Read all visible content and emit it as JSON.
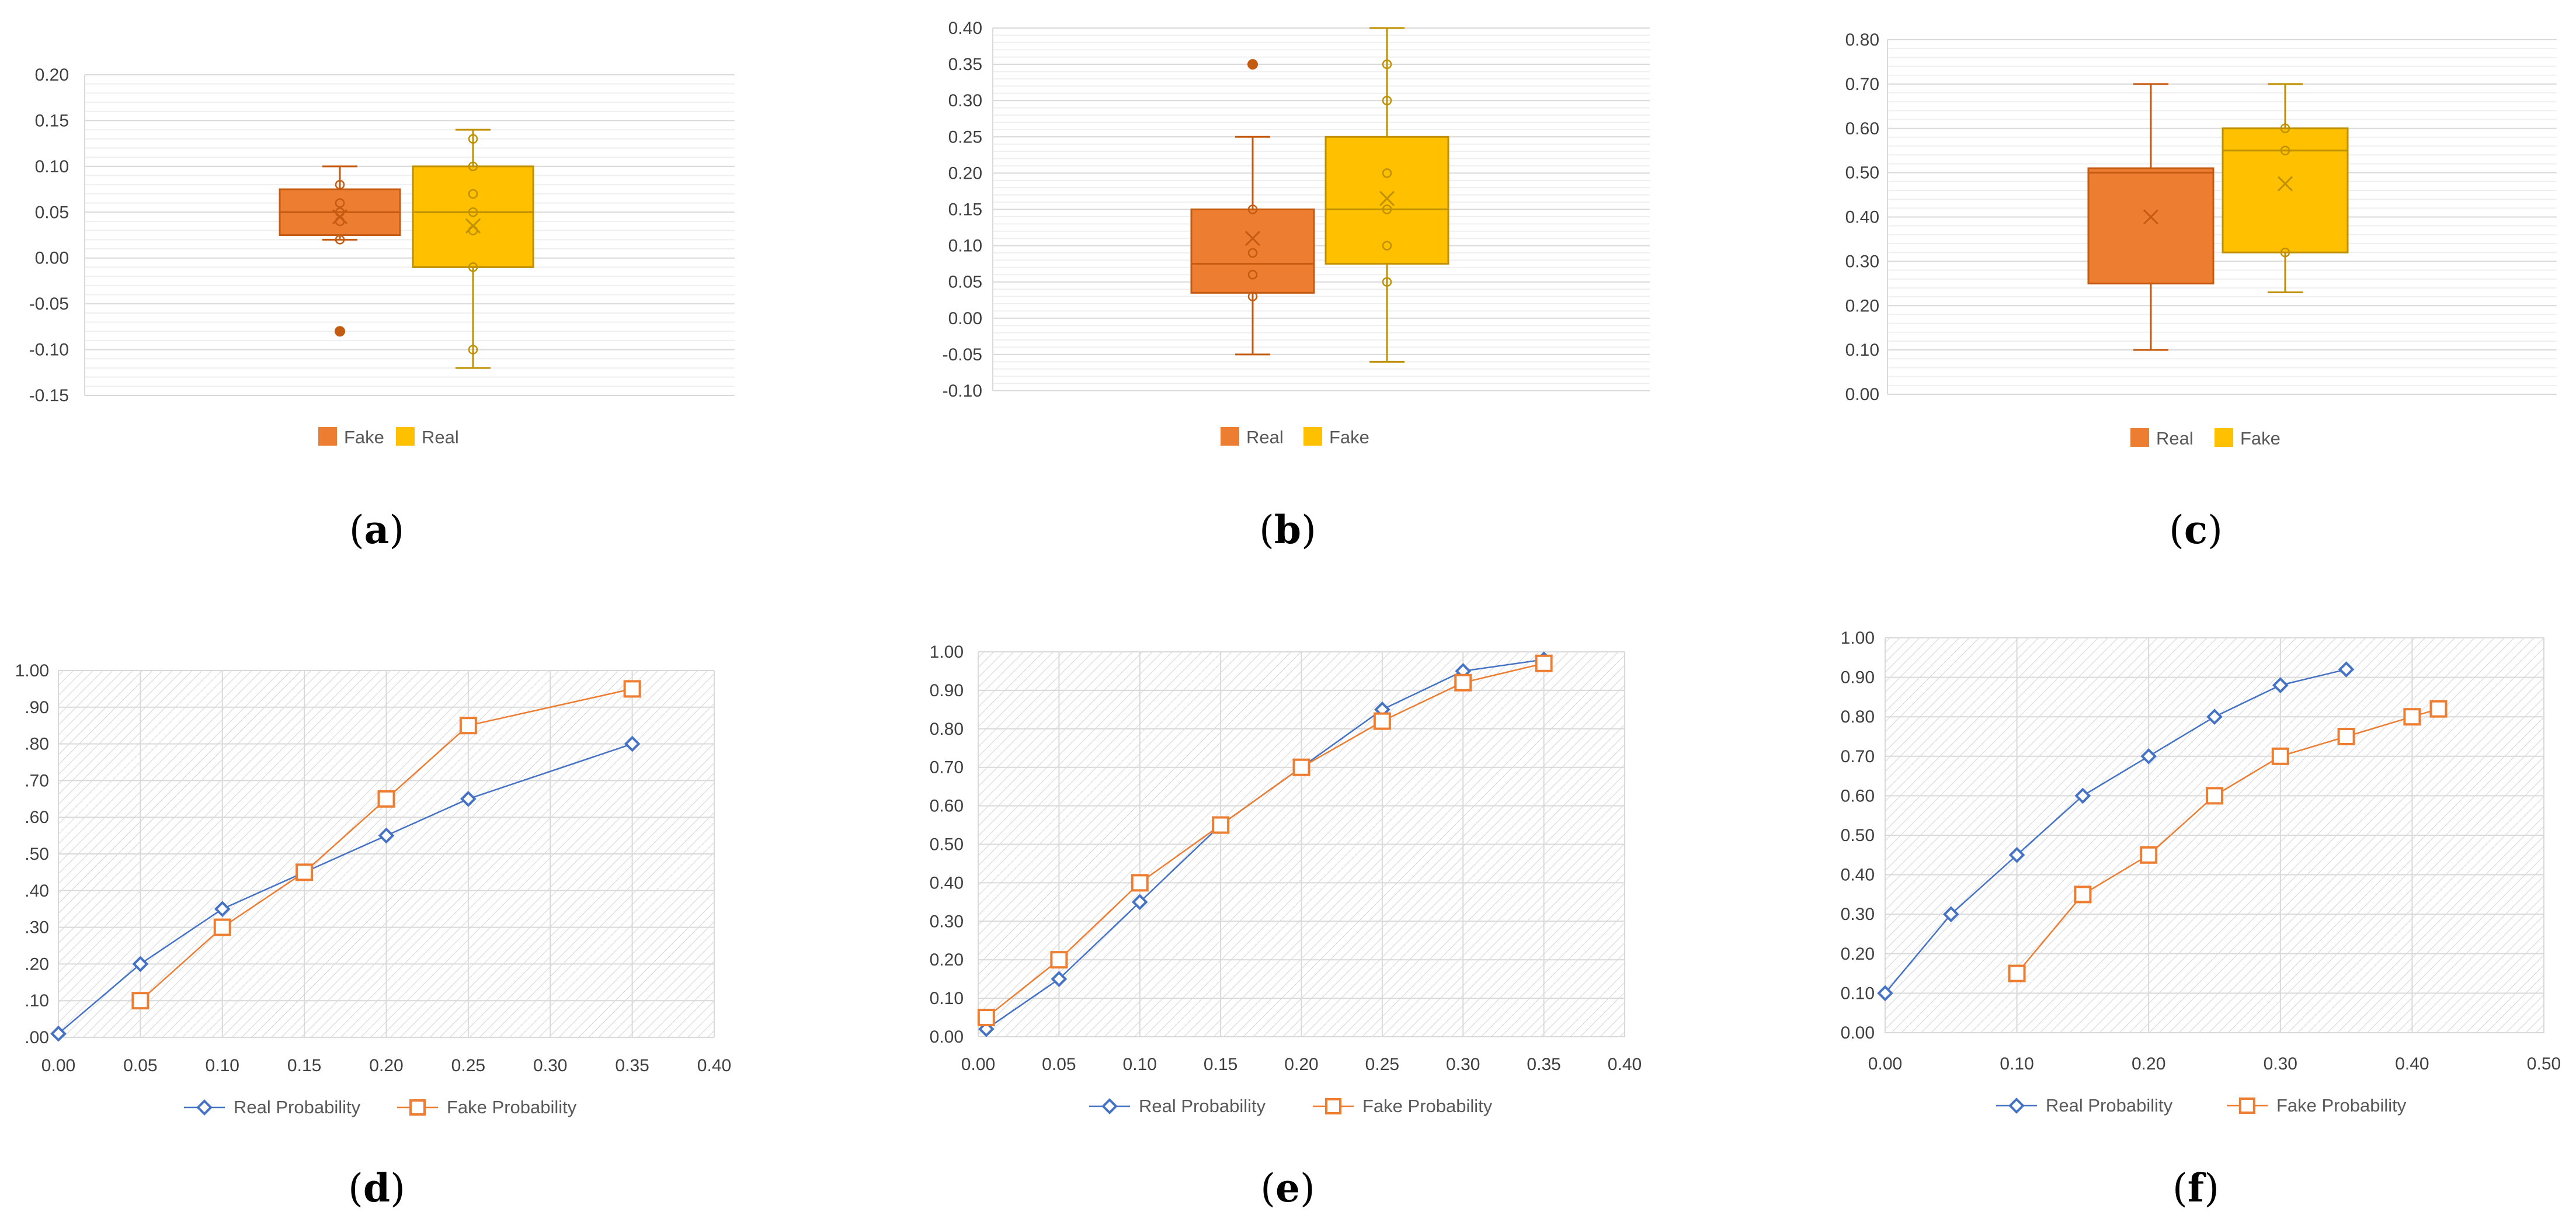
{
  "chart_data": [
    {
      "id": "a",
      "type": "box",
      "caption": "a",
      "ylim": [
        -0.15,
        0.2
      ],
      "yticks": [
        "0.20",
        "0.15",
        "0.10",
        "0.05",
        "0.00",
        "-0.05",
        "-0.10",
        "-0.15"
      ],
      "ytick_values": [
        0.2,
        0.15,
        0.1,
        0.05,
        0.0,
        -0.05,
        -0.1,
        -0.15
      ],
      "legend": [
        "Fake",
        "Real"
      ],
      "series": [
        {
          "name": "Fake",
          "color": "#ED7D31",
          "min": 0.02,
          "q1": 0.025,
          "median": 0.05,
          "q3": 0.075,
          "max": 0.1,
          "mean": 0.045,
          "points": [
            0.08,
            0.06,
            0.05,
            0.04,
            0.02
          ],
          "outliers": [
            -0.08
          ]
        },
        {
          "name": "Real",
          "color": "#FFC000",
          "min": -0.12,
          "q1": -0.01,
          "median": 0.05,
          "q3": 0.1,
          "max": 0.14,
          "mean": 0.035,
          "points": [
            0.13,
            0.1,
            0.07,
            0.05,
            0.03,
            -0.01,
            -0.1
          ],
          "outliers": []
        }
      ]
    },
    {
      "id": "b",
      "type": "box",
      "caption": "b",
      "ylim": [
        -0.1,
        0.4
      ],
      "yticks": [
        "0.40",
        "0.35",
        "0.30",
        "0.25",
        "0.20",
        "0.15",
        "0.10",
        "0.05",
        "0.00",
        "-0.05",
        "-0.10"
      ],
      "ytick_values": [
        0.4,
        0.35,
        0.3,
        0.25,
        0.2,
        0.15,
        0.1,
        0.05,
        0.0,
        -0.05,
        -0.1
      ],
      "legend": [
        "Real",
        "Fake"
      ],
      "series": [
        {
          "name": "Real",
          "color": "#ED7D31",
          "min": -0.05,
          "q1": 0.035,
          "median": 0.075,
          "q3": 0.15,
          "max": 0.25,
          "mean": 0.11,
          "points": [
            0.15,
            0.09,
            0.06,
            0.03
          ],
          "outliers": [
            0.35
          ]
        },
        {
          "name": "Fake",
          "color": "#FFC000",
          "min": -0.06,
          "q1": 0.075,
          "median": 0.15,
          "q3": 0.25,
          "max": 0.4,
          "mean": 0.165,
          "points": [
            0.35,
            0.3,
            0.2,
            0.15,
            0.1,
            0.05
          ],
          "outliers": []
        }
      ]
    },
    {
      "id": "c",
      "type": "box",
      "caption": "c",
      "ylim": [
        0.0,
        0.8
      ],
      "yticks": [
        "0.80",
        "0.70",
        "0.60",
        "0.50",
        "0.40",
        "0.30",
        "0.20",
        "0.10",
        "0.00"
      ],
      "ytick_values": [
        0.8,
        0.7,
        0.6,
        0.5,
        0.4,
        0.3,
        0.2,
        0.1,
        0.0
      ],
      "legend": [
        "Real",
        "Fake"
      ],
      "series": [
        {
          "name": "Real",
          "color": "#ED7D31",
          "min": 0.1,
          "q1": 0.25,
          "median": 0.5,
          "q3": 0.51,
          "max": 0.7,
          "mean": 0.4,
          "points": [],
          "outliers": []
        },
        {
          "name": "Fake",
          "color": "#FFC000",
          "min": 0.23,
          "q1": 0.32,
          "median": 0.55,
          "q3": 0.6,
          "max": 0.7,
          "mean": 0.475,
          "points": [
            0.6,
            0.55,
            0.32
          ],
          "outliers": []
        }
      ]
    },
    {
      "id": "d",
      "type": "line",
      "caption": "d",
      "xlim": [
        0.0,
        0.4
      ],
      "ylim": [
        0.0,
        1.0
      ],
      "xticks": [
        "0.00",
        "0.05",
        "0.10",
        "0.15",
        "0.20",
        "0.25",
        "0.30",
        "0.35",
        "0.40"
      ],
      "yticks": [
        "1.00",
        ".90",
        ".80",
        ".70",
        ".60",
        ".50",
        ".40",
        ".30",
        ".20",
        ".10",
        ".00"
      ],
      "legend": [
        "Real Probability",
        "Fake Probability"
      ],
      "series": [
        {
          "name": "Real Probability",
          "color": "#4472C4",
          "marker": "diamond",
          "x": [
            0.0,
            0.05,
            0.1,
            0.15,
            0.2,
            0.25,
            0.35
          ],
          "y": [
            0.01,
            0.2,
            0.35,
            0.45,
            0.55,
            0.65,
            0.8
          ]
        },
        {
          "name": "Fake Probability",
          "color": "#ED7D31",
          "marker": "square",
          "x": [
            0.05,
            0.1,
            0.15,
            0.2,
            0.25,
            0.35
          ],
          "y": [
            0.1,
            0.3,
            0.45,
            0.65,
            0.85,
            0.95
          ]
        }
      ]
    },
    {
      "id": "e",
      "type": "line",
      "caption": "e",
      "xlim": [
        0.0,
        0.4
      ],
      "ylim": [
        0.0,
        1.0
      ],
      "xticks": [
        "0.00",
        "0.05",
        "0.10",
        "0.15",
        "0.20",
        "0.25",
        "0.30",
        "0.35",
        "0.40"
      ],
      "yticks": [
        "1.00",
        "0.90",
        "0.80",
        "0.70",
        "0.60",
        "0.50",
        "0.40",
        "0.30",
        "0.20",
        "0.10",
        "0.00"
      ],
      "legend": [
        "Real Probability",
        "Fake Probability"
      ],
      "series": [
        {
          "name": "Real Probability",
          "color": "#4472C4",
          "marker": "diamond",
          "x": [
            0.005,
            0.05,
            0.1,
            0.15,
            0.2,
            0.25,
            0.3,
            0.35
          ],
          "y": [
            0.02,
            0.15,
            0.35,
            0.55,
            0.7,
            0.85,
            0.95,
            0.98
          ]
        },
        {
          "name": "Fake Probability",
          "color": "#ED7D31",
          "marker": "square",
          "x": [
            0.005,
            0.05,
            0.1,
            0.15,
            0.2,
            0.25,
            0.3,
            0.35
          ],
          "y": [
            0.05,
            0.2,
            0.4,
            0.55,
            0.7,
            0.82,
            0.92,
            0.97
          ]
        }
      ]
    },
    {
      "id": "f",
      "type": "line",
      "caption": "f",
      "xlim": [
        0.0,
        0.5
      ],
      "ylim": [
        0.0,
        1.0
      ],
      "xticks": [
        "0.00",
        "0.10",
        "0.20",
        "0.30",
        "0.40",
        "0.50"
      ],
      "yticks": [
        "1.00",
        "0.90",
        "0.80",
        "0.70",
        "0.60",
        "0.50",
        "0.40",
        "0.30",
        "0.20",
        "0.10",
        "0.00"
      ],
      "legend": [
        "Real Probability",
        "Fake Probability"
      ],
      "series": [
        {
          "name": "Real Probability",
          "color": "#4472C4",
          "marker": "diamond",
          "x": [
            0.0,
            0.05,
            0.1,
            0.15,
            0.2,
            0.25,
            0.3,
            0.35
          ],
          "y": [
            0.1,
            0.3,
            0.45,
            0.6,
            0.7,
            0.8,
            0.88,
            0.92
          ]
        },
        {
          "name": "Fake Probability",
          "color": "#ED7D31",
          "marker": "square",
          "x": [
            0.1,
            0.15,
            0.2,
            0.25,
            0.3,
            0.35,
            0.4,
            0.42
          ],
          "y": [
            0.15,
            0.35,
            0.45,
            0.6,
            0.7,
            0.75,
            0.8,
            0.82
          ]
        }
      ]
    }
  ]
}
